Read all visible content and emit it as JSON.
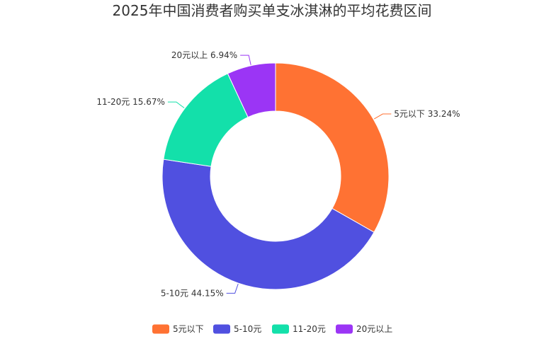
{
  "chart_data": {
    "type": "pie",
    "title": "2025年中国消费者购买单支冰淇淋的平均花费区间",
    "legend_position": "bottom",
    "slices": [
      {
        "name": "5元以下",
        "value": 33.24,
        "label": "5元以下 33.24%",
        "color": "#FF7233"
      },
      {
        "name": "5-10元",
        "value": 44.15,
        "label": "5-10元 44.15%",
        "color": "#5050E0"
      },
      {
        "name": "11-20元",
        "value": 15.67,
        "label": "11-20元 15.67%",
        "color": "#13E0AA"
      },
      {
        "name": "20元以上",
        "value": 6.94,
        "label": "20元以上 6.94%",
        "color": "#9B35F5"
      }
    ]
  }
}
